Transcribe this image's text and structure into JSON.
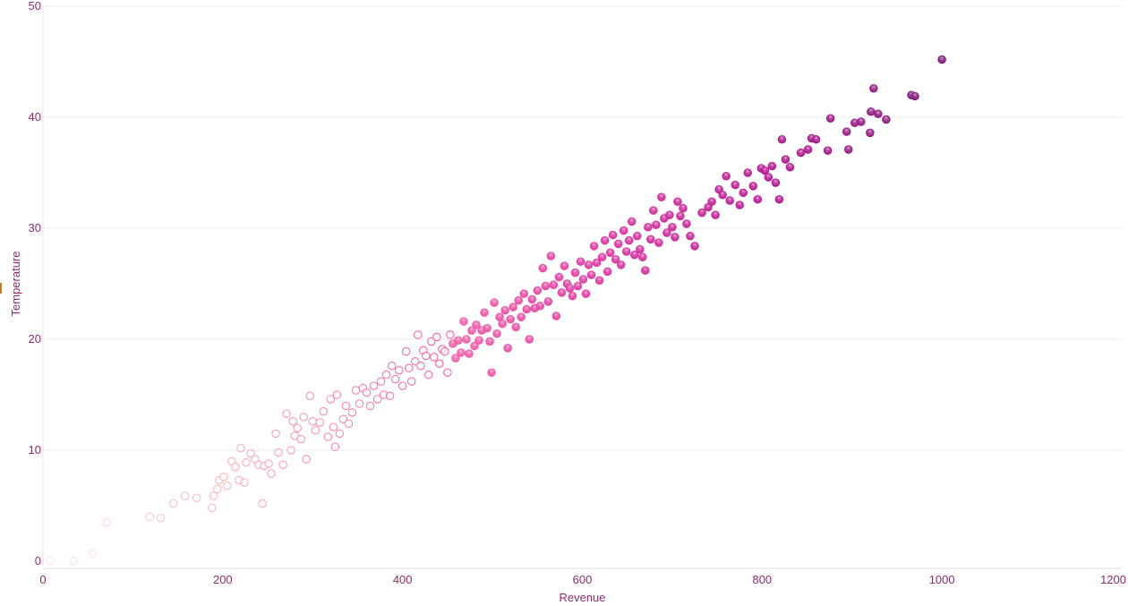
{
  "colors": {
    "text": "#8e2a6e",
    "grid": "#ebebeb",
    "axis_line": "#e0e0e0",
    "marker": "#d4741c",
    "ramp": [
      "#fde7e4",
      "#fbb4bc",
      "#f76eaa",
      "#df3aa3",
      "#b41790",
      "#7a1a76"
    ]
  },
  "chart_data": {
    "type": "scatter",
    "xlabel": "Revenue",
    "ylabel": "Temperature",
    "xlim": [
      0,
      1200
    ],
    "ylim": [
      0,
      50
    ],
    "xticks": [
      0,
      200,
      400,
      600,
      800,
      1000,
      1200
    ],
    "yticks": [
      0,
      10,
      20,
      30,
      40,
      50
    ],
    "grid": "horizontal",
    "color_encoding": "revenue (light pink to dark purple)",
    "points": [
      [
        8,
        0
      ],
      [
        34,
        0
      ],
      [
        55,
        0.7
      ],
      [
        71,
        3.5
      ],
      [
        119,
        4.0
      ],
      [
        131,
        3.9
      ],
      [
        145,
        5.2
      ],
      [
        158,
        5.9
      ],
      [
        171,
        5.7
      ],
      [
        188,
        4.8
      ],
      [
        190,
        5.9
      ],
      [
        194,
        6.5
      ],
      [
        196,
        7.3
      ],
      [
        201,
        7.6
      ],
      [
        205,
        6.8
      ],
      [
        210,
        9.0
      ],
      [
        214,
        8.5
      ],
      [
        218,
        7.3
      ],
      [
        220,
        10.2
      ],
      [
        224,
        7.1
      ],
      [
        226,
        8.9
      ],
      [
        231,
        9.7
      ],
      [
        236,
        9.2
      ],
      [
        240,
        8.7
      ],
      [
        244,
        5.2
      ],
      [
        246,
        8.6
      ],
      [
        251,
        8.8
      ],
      [
        254,
        7.9
      ],
      [
        259,
        11.5
      ],
      [
        262,
        9.8
      ],
      [
        267,
        8.7
      ],
      [
        271,
        13.3
      ],
      [
        276,
        10.0
      ],
      [
        278,
        12.6
      ],
      [
        280,
        11.3
      ],
      [
        283,
        12.0
      ],
      [
        287,
        11.0
      ],
      [
        290,
        13.0
      ],
      [
        293,
        9.2
      ],
      [
        297,
        14.9
      ],
      [
        300,
        12.6
      ],
      [
        303,
        11.8
      ],
      [
        308,
        12.5
      ],
      [
        312,
        13.5
      ],
      [
        317,
        11.2
      ],
      [
        320,
        14.6
      ],
      [
        323,
        12.1
      ],
      [
        325,
        10.3
      ],
      [
        327,
        15.0
      ],
      [
        330,
        11.5
      ],
      [
        334,
        12.8
      ],
      [
        337,
        14.0
      ],
      [
        340,
        12.4
      ],
      [
        344,
        13.4
      ],
      [
        348,
        15.4
      ],
      [
        352,
        14.2
      ],
      [
        356,
        15.6
      ],
      [
        360,
        15.2
      ],
      [
        364,
        14.0
      ],
      [
        368,
        15.8
      ],
      [
        372,
        14.6
      ],
      [
        376,
        16.2
      ],
      [
        379,
        15.0
      ],
      [
        382,
        16.8
      ],
      [
        386,
        14.9
      ],
      [
        388,
        17.6
      ],
      [
        392,
        16.4
      ],
      [
        396,
        17.2
      ],
      [
        400,
        15.8
      ],
      [
        404,
        18.9
      ],
      [
        407,
        17.4
      ],
      [
        410,
        16.2
      ],
      [
        414,
        18.0
      ],
      [
        417,
        20.4
      ],
      [
        420,
        17.6
      ],
      [
        423,
        19.0
      ],
      [
        426,
        18.5
      ],
      [
        429,
        16.8
      ],
      [
        432,
        19.8
      ],
      [
        435,
        18.4
      ],
      [
        438,
        20.2
      ],
      [
        441,
        17.8
      ],
      [
        444,
        19.1
      ],
      [
        447,
        18.9
      ],
      [
        450,
        17.0
      ],
      [
        453,
        20.4
      ],
      [
        456,
        19.6
      ],
      [
        459,
        18.3
      ],
      [
        462,
        19.9
      ],
      [
        465,
        18.8
      ],
      [
        468,
        21.6
      ],
      [
        471,
        20.0
      ],
      [
        474,
        18.7
      ],
      [
        477,
        20.8
      ],
      [
        480,
        19.4
      ],
      [
        482,
        21.3
      ],
      [
        485,
        19.9
      ],
      [
        488,
        20.8
      ],
      [
        491,
        22.4
      ],
      [
        494,
        21.0
      ],
      [
        497,
        19.8
      ],
      [
        499,
        17.0
      ],
      [
        502,
        23.3
      ],
      [
        505,
        20.5
      ],
      [
        508,
        22.0
      ],
      [
        511,
        21.4
      ],
      [
        514,
        22.6
      ],
      [
        517,
        19.2
      ],
      [
        520,
        21.8
      ],
      [
        523,
        22.9
      ],
      [
        526,
        21.1
      ],
      [
        529,
        23.5
      ],
      [
        532,
        22.0
      ],
      [
        535,
        24.1
      ],
      [
        538,
        22.7
      ],
      [
        541,
        20.0
      ],
      [
        544,
        23.6
      ],
      [
        547,
        22.8
      ],
      [
        550,
        24.4
      ],
      [
        553,
        23.0
      ],
      [
        556,
        26.4
      ],
      [
        559,
        24.8
      ],
      [
        562,
        23.4
      ],
      [
        565,
        27.5
      ],
      [
        568,
        24.9
      ],
      [
        571,
        22.1
      ],
      [
        574,
        25.6
      ],
      [
        577,
        24.2
      ],
      [
        580,
        26.6
      ],
      [
        583,
        25.0
      ],
      [
        586,
        24.6
      ],
      [
        589,
        23.9
      ],
      [
        592,
        26.0
      ],
      [
        595,
        24.8
      ],
      [
        598,
        27.0
      ],
      [
        601,
        25.4
      ],
      [
        604,
        24.1
      ],
      [
        607,
        26.7
      ],
      [
        610,
        25.8
      ],
      [
        613,
        28.4
      ],
      [
        616,
        26.9
      ],
      [
        619,
        25.3
      ],
      [
        622,
        27.4
      ],
      [
        625,
        28.9
      ],
      [
        628,
        26.1
      ],
      [
        631,
        27.8
      ],
      [
        634,
        29.4
      ],
      [
        637,
        27.2
      ],
      [
        640,
        28.6
      ],
      [
        643,
        26.7
      ],
      [
        646,
        29.8
      ],
      [
        649,
        27.9
      ],
      [
        652,
        28.9
      ],
      [
        655,
        30.6
      ],
      [
        658,
        27.6
      ],
      [
        661,
        29.3
      ],
      [
        664,
        28.1
      ],
      [
        667,
        27.4
      ],
      [
        670,
        26.2
      ],
      [
        673,
        30.1
      ],
      [
        676,
        29.0
      ],
      [
        679,
        31.6
      ],
      [
        682,
        30.3
      ],
      [
        685,
        28.7
      ],
      [
        688,
        32.8
      ],
      [
        691,
        30.9
      ],
      [
        694,
        29.6
      ],
      [
        697,
        31.2
      ],
      [
        700,
        30.1
      ],
      [
        703,
        29.2
      ],
      [
        706,
        32.4
      ],
      [
        709,
        31.1
      ],
      [
        712,
        31.8
      ],
      [
        716,
        30.4
      ],
      [
        720,
        29.3
      ],
      [
        725,
        28.4
      ],
      [
        733,
        31.4
      ],
      [
        740,
        31.9
      ],
      [
        744,
        32.4
      ],
      [
        748,
        31.2
      ],
      [
        752,
        33.5
      ],
      [
        756,
        33.0
      ],
      [
        760,
        34.7
      ],
      [
        764,
        32.5
      ],
      [
        770,
        33.9
      ],
      [
        775,
        32.1
      ],
      [
        779,
        33.2
      ],
      [
        784,
        35.0
      ],
      [
        790,
        33.8
      ],
      [
        795,
        32.6
      ],
      [
        799,
        35.4
      ],
      [
        803,
        35.2
      ],
      [
        807,
        34.6
      ],
      [
        811,
        35.6
      ],
      [
        815,
        34.1
      ],
      [
        819,
        32.6
      ],
      [
        822,
        38.0
      ],
      [
        826,
        36.2
      ],
      [
        831,
        35.5
      ],
      [
        843,
        36.8
      ],
      [
        851,
        37.1
      ],
      [
        855,
        38.1
      ],
      [
        860,
        38.0
      ],
      [
        873,
        37.0
      ],
      [
        876,
        39.9
      ],
      [
        894,
        38.7
      ],
      [
        896,
        37.1
      ],
      [
        903,
        39.5
      ],
      [
        910,
        39.6
      ],
      [
        920,
        38.6
      ],
      [
        921,
        40.5
      ],
      [
        924,
        42.6
      ],
      [
        929,
        40.3
      ],
      [
        938,
        39.8
      ],
      [
        966,
        42.0
      ],
      [
        970,
        41.9
      ],
      [
        1000,
        45.2
      ]
    ]
  }
}
